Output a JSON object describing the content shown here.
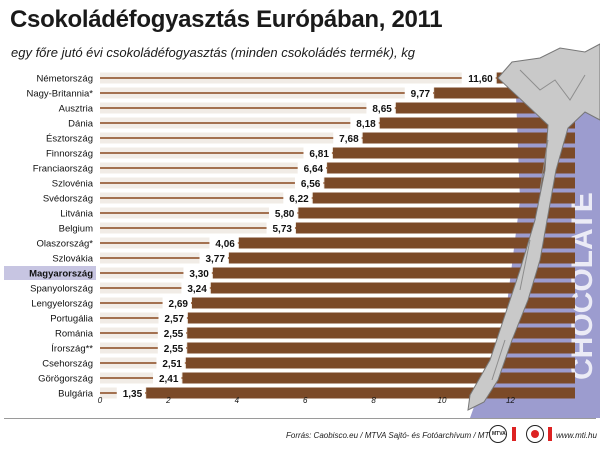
{
  "title": "Csokoládéfogyasztás Európában, 2011",
  "subtitle": "egy főre jutó évi csokoládéfogyasztás (minden csokoládés termék), kg",
  "footer": {
    "source": "Forrás: Caobisco.eu / MTVA Sajtó- és Fotóarchívum / MTI",
    "site": "www.mti.hu"
  },
  "decoration": {
    "wrapper_text": "CHOCOLATE"
  },
  "colors": {
    "bar": "#7b4a28",
    "bar_light": "#a37150",
    "highlight_label_bg": "#c7c5e2",
    "background_band": "#9c9ccf",
    "foil": "#c9c9c9"
  },
  "chart_data": {
    "type": "bar",
    "orientation": "horizontal",
    "categories": [
      "Németország",
      "Nagy-Britannia*",
      "Ausztria",
      "Dánia",
      "Észtország",
      "Finnország",
      "Franciaország",
      "Szlovénia",
      "Svédország",
      "Litvánia",
      "Belgium",
      "Olaszország*",
      "Szlovákia",
      "Magyarország",
      "Spanyolország",
      "Lengyelország",
      "Portugália",
      "Románia",
      "Írország**",
      "Csehország",
      "Görögország",
      "Bulgária"
    ],
    "value_labels": [
      "11,60",
      "9,77",
      "8,65",
      "8,18",
      "7,68",
      "6,81",
      "6,64",
      "6,56",
      "6,22",
      "5,80",
      "5,73",
      "4,06",
      "3,77",
      "3,30",
      "3,24",
      "2,69",
      "2,57",
      "2,55",
      "2,55",
      "2,51",
      "2,41",
      "1,35"
    ],
    "values": [
      11.6,
      9.77,
      8.65,
      8.18,
      7.68,
      6.81,
      6.64,
      6.56,
      6.22,
      5.8,
      5.73,
      4.06,
      3.77,
      3.3,
      3.24,
      2.69,
      2.57,
      2.55,
      2.55,
      2.51,
      2.41,
      1.35
    ],
    "highlight": "Magyarország",
    "xticks": [
      "0",
      "2",
      "4",
      "6",
      "8",
      "10",
      "12"
    ],
    "xlim": [
      0,
      13
    ],
    "title": "Csokoládéfogyasztás Európában, 2011",
    "xlabel": "",
    "ylabel": "",
    "grid": false
  }
}
